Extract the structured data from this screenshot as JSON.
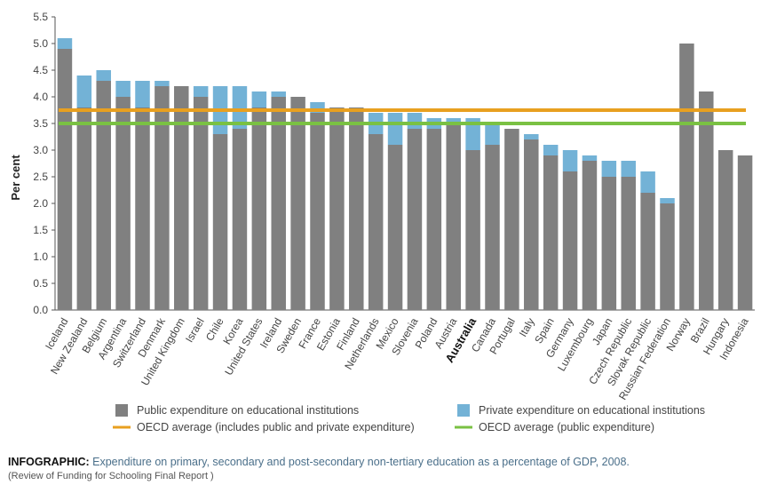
{
  "chart_data": {
    "type": "bar",
    "stacked": true,
    "ylabel": "Per cent",
    "ylim": [
      0,
      5.5
    ],
    "yticks": [
      "0.0",
      "0.5",
      "1.0",
      "1.5",
      "2.0",
      "2.5",
      "3.0",
      "3.5",
      "4.0",
      "4.5",
      "5.0",
      "5.5"
    ],
    "grid": false,
    "categories": [
      "Iceland",
      "New Zealand",
      "Belgium",
      "Argentina",
      "Switzerland",
      "Denmark",
      "United Kingdom",
      "Israel",
      "Chile",
      "Korea",
      "United States",
      "Ireland",
      "Sweden",
      "France",
      "Estonia",
      "Finland",
      "Netherlands",
      "Mexico",
      "Slovenia",
      "Poland",
      "Austria",
      "Australia",
      "Canada",
      "Portugal",
      "Italy",
      "Spain",
      "Germany",
      "Luxembourg",
      "Japan",
      "Czech Republic",
      "Slovak Republic",
      "Russian Federation",
      "Norway",
      "Brazil",
      "Hungary",
      "Indonesia"
    ],
    "highlight_category": "Australia",
    "series": [
      {
        "name": "Public expenditure on educational institutions",
        "color": "#808080",
        "values": [
          4.9,
          3.8,
          4.3,
          4.0,
          3.8,
          4.2,
          4.2,
          4.0,
          3.3,
          3.4,
          3.8,
          4.0,
          4.0,
          3.7,
          3.8,
          3.8,
          3.3,
          3.1,
          3.4,
          3.4,
          3.5,
          3.0,
          3.1,
          3.4,
          3.2,
          2.9,
          2.6,
          2.8,
          2.5,
          2.5,
          2.2,
          2.0,
          5.0,
          4.1,
          3.0,
          2.9
        ]
      },
      {
        "name": "Private expenditure on educational institutions",
        "color": "#73b2d6",
        "values": [
          0.2,
          0.6,
          0.2,
          0.3,
          0.5,
          0.1,
          0.0,
          0.2,
          0.9,
          0.8,
          0.3,
          0.1,
          0.0,
          0.2,
          0.0,
          0.0,
          0.4,
          0.6,
          0.3,
          0.2,
          0.1,
          0.6,
          0.4,
          0.0,
          0.1,
          0.2,
          0.4,
          0.1,
          0.3,
          0.3,
          0.4,
          0.1,
          0.0,
          0.0,
          0.0,
          0.0
        ]
      }
    ],
    "reference_lines": [
      {
        "name": "OECD average (includes public and private expenditure)",
        "value": 3.75,
        "color": "#e8a020"
      },
      {
        "name": "OECD average (public expenditure)",
        "value": 3.5,
        "color": "#7ac143"
      }
    ],
    "legend_position": "bottom"
  },
  "caption": {
    "label": "INFOGRAPHIC:",
    "text": " Expenditure on primary, secondary and post-secondary non-tertiary education as a percentage of GDP, 2008.",
    "source": "(Review of Funding for Schooling Final Report )"
  }
}
